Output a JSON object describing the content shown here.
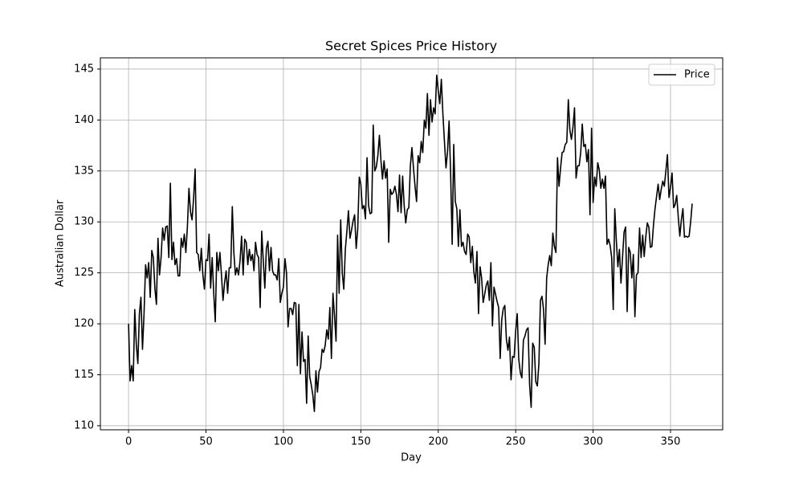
{
  "chart_data": {
    "type": "line",
    "title": "Secret Spices Price History",
    "xlabel": "Day",
    "ylabel": "Australian Dollar",
    "x": [
      0,
      1,
      2,
      3,
      4,
      5,
      6,
      7,
      8,
      9,
      10,
      11,
      12,
      13,
      14,
      15,
      16,
      17,
      18,
      19,
      20,
      21,
      22,
      23,
      24,
      25,
      26,
      27,
      28,
      29,
      30,
      31,
      32,
      33,
      34,
      35,
      36,
      37,
      38,
      39,
      40,
      41,
      42,
      43,
      44,
      45,
      46,
      47,
      48,
      49,
      50,
      51,
      52,
      53,
      54,
      55,
      56,
      57,
      58,
      59,
      60,
      61,
      62,
      63,
      64,
      65,
      66,
      67,
      68,
      69,
      70,
      71,
      72,
      73,
      74,
      75,
      76,
      77,
      78,
      79,
      80,
      81,
      82,
      83,
      84,
      85,
      86,
      87,
      88,
      89,
      90,
      91,
      92,
      93,
      94,
      95,
      96,
      97,
      98,
      99,
      100,
      101,
      102,
      103,
      104,
      105,
      106,
      107,
      108,
      109,
      110,
      111,
      112,
      113,
      114,
      115,
      116,
      117,
      118,
      119,
      120,
      121,
      122,
      123,
      124,
      125,
      126,
      127,
      128,
      129,
      130,
      131,
      132,
      133,
      134,
      135,
      136,
      137,
      138,
      139,
      140,
      141,
      142,
      143,
      144,
      145,
      146,
      147,
      148,
      149,
      150,
      151,
      152,
      153,
      154,
      155,
      156,
      157,
      158,
      159,
      160,
      161,
      162,
      163,
      164,
      165,
      166,
      167,
      168,
      169,
      170,
      171,
      172,
      173,
      174,
      175,
      176,
      177,
      178,
      179,
      180,
      181,
      182,
      183,
      184,
      185,
      186,
      187,
      188,
      189,
      190,
      191,
      192,
      193,
      194,
      195,
      196,
      197,
      198,
      199,
      200,
      201,
      202,
      203,
      204,
      205,
      206,
      207,
      208,
      209,
      210,
      211,
      212,
      213,
      214,
      215,
      216,
      217,
      218,
      219,
      220,
      221,
      222,
      223,
      224,
      225,
      226,
      227,
      228,
      229,
      230,
      231,
      232,
      233,
      234,
      235,
      236,
      237,
      238,
      239,
      240,
      241,
      242,
      243,
      244,
      245,
      246,
      247,
      248,
      249,
      250,
      251,
      252,
      253,
      254,
      255,
      256,
      257,
      258,
      259,
      260,
      261,
      262,
      263,
      264,
      265,
      266,
      267,
      268,
      269,
      270,
      271,
      272,
      273,
      274,
      275,
      276,
      277,
      278,
      279,
      280,
      281,
      282,
      283,
      284,
      285,
      286,
      287,
      288,
      289,
      290,
      291,
      292,
      293,
      294,
      295,
      296,
      297,
      298,
      299,
      300,
      301,
      302,
      303,
      304,
      305,
      306,
      307,
      308,
      309,
      310,
      311,
      312,
      313,
      314,
      315,
      316,
      317,
      318,
      319,
      320,
      321,
      322,
      323,
      324,
      325,
      326,
      327,
      328,
      329,
      330,
      331,
      332,
      333,
      334,
      335,
      336,
      337,
      338,
      339,
      340,
      341,
      342,
      343,
      344,
      345,
      346,
      347,
      348,
      349,
      350,
      351,
      352,
      353,
      354,
      355,
      356,
      357,
      358,
      359,
      360,
      361,
      362,
      363,
      364
    ],
    "series": [
      {
        "name": "Price",
        "color": "#000000",
        "values": [
          120,
          114.4,
          115.9,
          114.4,
          121.4,
          118,
          116.1,
          121,
          122.6,
          117.5,
          121,
          125.8,
          124.5,
          126,
          122.6,
          127.2,
          126.5,
          123.5,
          121.9,
          128.4,
          124.8,
          126.5,
          129.4,
          128.2,
          129.5,
          129.6,
          126.5,
          133.8,
          126.3,
          128,
          125.8,
          126.4,
          124.7,
          124.7,
          128.4,
          127.5,
          128.8,
          127,
          129.5,
          133.3,
          131,
          130.2,
          132.3,
          135.2,
          127,
          126.8,
          125.2,
          127.4,
          124.8,
          123.4,
          126.3,
          126.2,
          128.8,
          123.5,
          126.5,
          123,
          120.2,
          127,
          125.2,
          127,
          124.8,
          122.3,
          124,
          125.2,
          123,
          125.5,
          125.5,
          131.5,
          127,
          124.8,
          125.5,
          124.8,
          126.2,
          128.6,
          124.8,
          128.3,
          128,
          125.8,
          127.3,
          126.2,
          126.8,
          125.2,
          128,
          126.8,
          126.5,
          121.6,
          129.1,
          126.2,
          123.5,
          127.4,
          128.1,
          125.2,
          127.5,
          125.2,
          124.8,
          124.8,
          124.3,
          126.4,
          122.1,
          123,
          123.6,
          126.4,
          125,
          119.7,
          121.5,
          121.5,
          120.9,
          122.1,
          122,
          115.9,
          121.9,
          115.1,
          119.2,
          116.3,
          116.5,
          112.2,
          118.8,
          114.8,
          114,
          113,
          111.4,
          115.4,
          113.3,
          115.3,
          115.7,
          117.5,
          117.2,
          117.9,
          119.4,
          118.5,
          121.6,
          116.6,
          123,
          120.8,
          118.3,
          128.7,
          123,
          130.2,
          125,
          123.4,
          127.3,
          129.1,
          131.1,
          128.4,
          129.2,
          130.1,
          130.7,
          127.4,
          129.3,
          134.4,
          133.7,
          131.3,
          131.6,
          130.3,
          136.3,
          131.6,
          130.8,
          130.9,
          139.5,
          135,
          135.4,
          136.5,
          138.5,
          136,
          134.2,
          136,
          134.3,
          135.2,
          128,
          133.2,
          132.7,
          132.9,
          133.5,
          132.7,
          131,
          134.6,
          130.9,
          134.5,
          131.6,
          129.9,
          131.2,
          131.4,
          135.5,
          137.3,
          135.3,
          133.5,
          132,
          136.5,
          135.8,
          137.9,
          136.8,
          140,
          139.2,
          142.6,
          138.5,
          142,
          139.8,
          141.2,
          140.6,
          144.4,
          142.9,
          141.6,
          144,
          140.6,
          137.9,
          135.3,
          136.9,
          139.9,
          134.7,
          127.8,
          137.6,
          132,
          131.3,
          127.6,
          131.2,
          127.6,
          128,
          127.1,
          126.8,
          128.8,
          128.5,
          126,
          127.6,
          125.1,
          124,
          127.1,
          121,
          125.6,
          124.5,
          122.1,
          122.9,
          123.8,
          124.2,
          122.3,
          126,
          119.8,
          123.6,
          122.9,
          122.2,
          121.6,
          116.6,
          120.4,
          121.5,
          121.8,
          118.5,
          117.4,
          118.7,
          114.5,
          116.8,
          116.7,
          119.3,
          121,
          116.5,
          115.2,
          114.7,
          118.4,
          118.8,
          119.4,
          119.6,
          114,
          111.8,
          118.1,
          117.7,
          114.3,
          113.9,
          116.1,
          122.3,
          122.7,
          121.4,
          118,
          124.5,
          125.8,
          126.7,
          125.7,
          128.9,
          127.6,
          127,
          136.3,
          133.5,
          135.3,
          136.8,
          136.9,
          137.6,
          137.8,
          142,
          139,
          138.1,
          139.3,
          141.2,
          134.3,
          135.5,
          135.5,
          136.8,
          139.6,
          137.4,
          137.6,
          135.9,
          137.1,
          130.7,
          139.2,
          131.9,
          134.4,
          133.5,
          135.8,
          135.1,
          133.3,
          134.2,
          133.3,
          134.5,
          127.8,
          128.3,
          127.7,
          126.5,
          121.4,
          131.3,
          128.2,
          125.6,
          127.3,
          124,
          126.5,
          129,
          129.5,
          121.2,
          127.5,
          127,
          124.5,
          126.8,
          120.7,
          124.8,
          125,
          129.4,
          126.5,
          128.7,
          126.6,
          128.5,
          129.9,
          129.5,
          127.5,
          127.6,
          129.7,
          131.3,
          132.5,
          133.7,
          132.2,
          133.2,
          134,
          133.5,
          135,
          136.6,
          132.4,
          133.4,
          134.8,
          131.4,
          131.7,
          132.6,
          130.5,
          128.6,
          130.2,
          131.3,
          128.5,
          128.6,
          128.5,
          128.6,
          130,
          131.8
        ]
      }
    ],
    "xlim": [
      -18.2,
      383.7
    ],
    "xticks": [
      0,
      50,
      100,
      150,
      200,
      250,
      300,
      350
    ],
    "ylim": [
      109.6,
      146.1
    ],
    "yticks": [
      110,
      115,
      120,
      125,
      130,
      135,
      140,
      145
    ],
    "grid": true,
    "legend": "upper right"
  }
}
